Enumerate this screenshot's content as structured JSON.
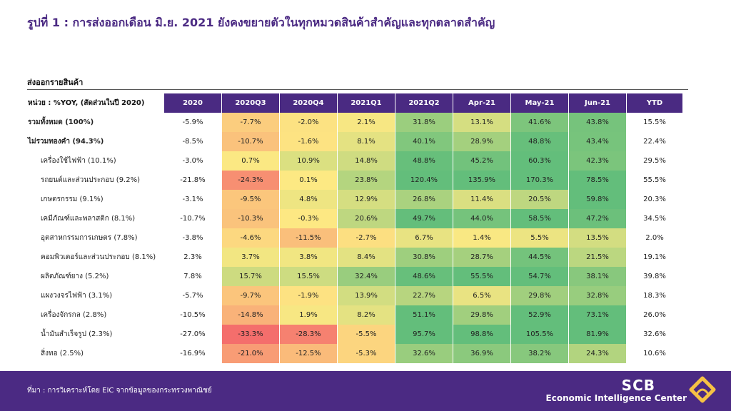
{
  "title": "รูปที่ 1 : การส่งออกเดือน มิ.ย. 2021 ยังคงขยายตัวในทุกหมวดสินค้าสำคัญและทุกตลาดสำคัญ",
  "table_heading": "ส่งออกรายสินค้า",
  "unit_label": "หน่วย : %YOY, (สัดส่วนในปี 2020)",
  "source_note": "ที่มา : การวิเคราะห์โดย EIC จากข้อมูลของกระทรวงพาณิชย์",
  "brand": {
    "name": "SCB",
    "subtitle": "Economic Intelligence Center"
  },
  "colors": {
    "header_bg": "#4a2a82",
    "footer_bg": "#4b2a83",
    "scale_low": "#f4686b",
    "scale_mid": "#fde983",
    "scale_high": "#63be7b"
  },
  "chart_data": {
    "type": "table",
    "color_scale": {
      "min": -35,
      "mid": 0,
      "max": 50
    },
    "columns": [
      "2020",
      "2020Q3",
      "2020Q4",
      "2021Q1",
      "2021Q2",
      "Apr-21",
      "May-21",
      "Jun-21",
      "YTD"
    ],
    "heatmap_columns": [
      "2020Q3",
      "2020Q4",
      "2021Q1",
      "2021Q2",
      "Apr-21",
      "May-21",
      "Jun-21"
    ],
    "rows": [
      {
        "label": "รวมทั้งหมด (100%)",
        "level": 0,
        "values": [
          -5.9,
          -7.7,
          -2.0,
          2.1,
          31.8,
          13.1,
          41.6,
          43.8,
          15.5
        ]
      },
      {
        "label": "ไม่รวมทองคำ (94.3%)",
        "level": 0,
        "values": [
          -8.5,
          -10.7,
          -1.6,
          8.1,
          40.1,
          28.9,
          48.8,
          43.4,
          22.4
        ]
      },
      {
        "label": "เครื่องใช้ไฟฟ้า (10.1%)",
        "level": 1,
        "values": [
          -3.0,
          0.7,
          10.9,
          14.8,
          48.8,
          45.2,
          60.3,
          42.3,
          29.5
        ]
      },
      {
        "label": "รถยนต์และส่วนประกอบ (9.2%)",
        "level": 1,
        "values": [
          -21.8,
          -24.3,
          0.1,
          23.8,
          120.4,
          135.9,
          170.3,
          78.5,
          55.5
        ]
      },
      {
        "label": "เกษตรกรรม (9.1%)",
        "level": 1,
        "values": [
          -3.1,
          -9.5,
          4.8,
          12.9,
          26.8,
          11.4,
          20.5,
          59.8,
          20.3
        ]
      },
      {
        "label": "เคมีภัณฑ์และพลาสติก (8.1%)",
        "level": 1,
        "values": [
          -10.7,
          -10.3,
          -0.3,
          20.6,
          49.7,
          44.0,
          58.5,
          47.2,
          34.5
        ]
      },
      {
        "label": "อุตสาหกรรมการเกษตร (7.8%)",
        "level": 1,
        "values": [
          -3.8,
          -4.6,
          -11.5,
          -2.7,
          6.7,
          1.4,
          5.5,
          13.5,
          2.0
        ]
      },
      {
        "label": "คอมพิวเตอร์และส่วนประกอบ (8.1%)",
        "level": 1,
        "values": [
          2.3,
          3.7,
          3.8,
          8.4,
          30.8,
          28.7,
          44.5,
          21.5,
          19.1
        ]
      },
      {
        "label": "ผลิตภัณฑ์ยาง (5.2%)",
        "level": 1,
        "values": [
          7.8,
          15.7,
          15.5,
          32.4,
          48.6,
          55.5,
          54.7,
          38.1,
          39.8
        ]
      },
      {
        "label": "แผงวงจรไฟฟ้า (3.1%)",
        "level": 1,
        "values": [
          -5.7,
          -9.7,
          -1.9,
          13.9,
          22.7,
          6.5,
          29.8,
          32.8,
          18.3
        ]
      },
      {
        "label": "เครื่องจักรกล (2.8%)",
        "level": 1,
        "values": [
          -10.5,
          -14.8,
          1.9,
          8.2,
          51.1,
          29.8,
          52.9,
          73.1,
          26.0
        ]
      },
      {
        "label": "น้ำมันสำเร็จรูป (2.3%)",
        "level": 1,
        "values": [
          -27.0,
          -33.3,
          -28.3,
          -5.5,
          95.7,
          98.8,
          105.5,
          81.9,
          32.6
        ]
      },
      {
        "label": "สิ่งทอ (2.5%)",
        "level": 1,
        "values": [
          -16.9,
          -21.0,
          -12.5,
          -5.3,
          32.6,
          36.9,
          38.2,
          24.3,
          10.6
        ]
      }
    ]
  }
}
